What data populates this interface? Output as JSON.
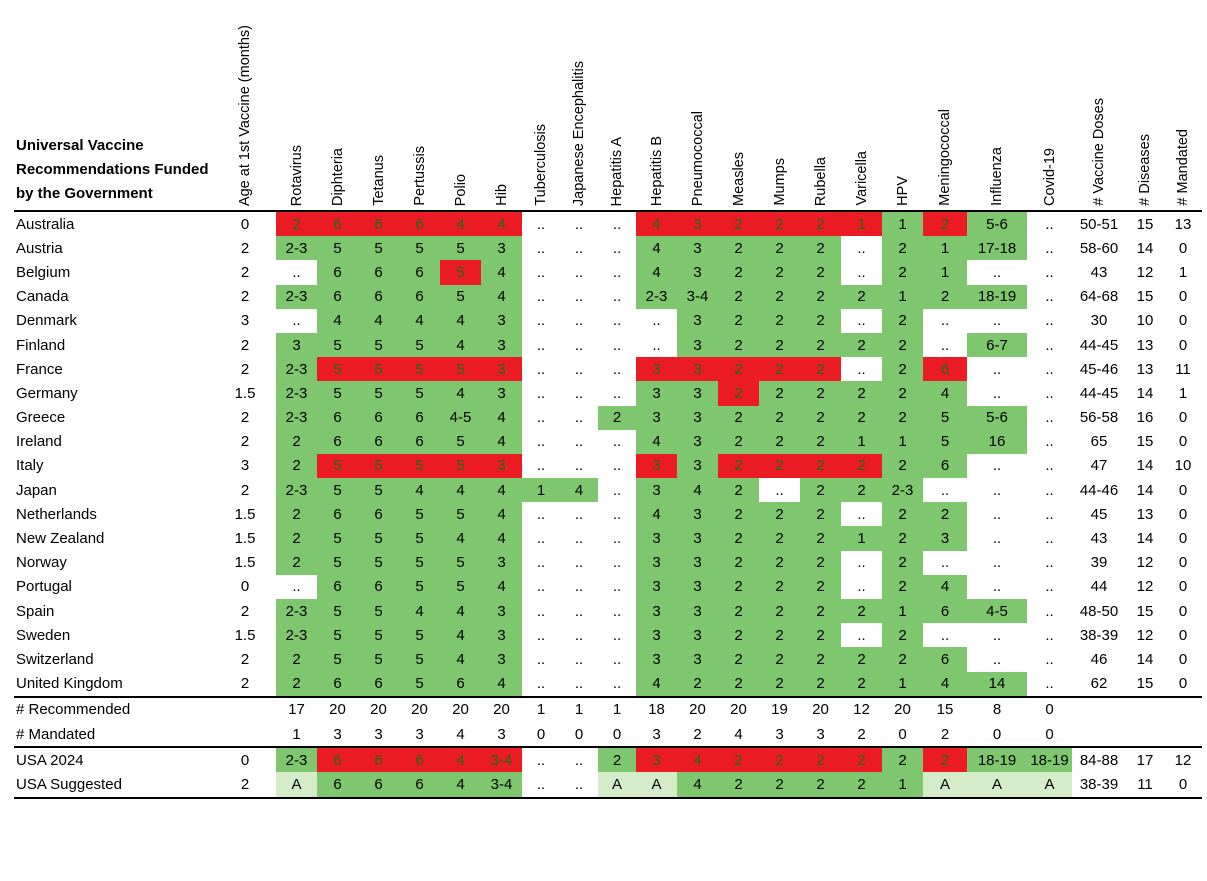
{
  "title": "Universal Vaccine Recommendations Funded by the Government",
  "columns": [
    "Age at 1st Vaccine (months)",
    "Rotavirus",
    "Diphteria",
    "Tetanus",
    "Pertussis",
    "Polio",
    "Hib",
    "Tuberculosis",
    "Japanese Encephalitis",
    "Hepatitis A",
    "Hepatitis B",
    "Pneumococcal",
    "Measles",
    "Mumps",
    "Rubella",
    "Varicella",
    "HPV",
    "Meningococcal",
    "Influenza",
    "Covid-19",
    "# Vaccine Doses",
    "# Diseases",
    "# Mandated"
  ],
  "rows": [
    {
      "name": "Australia",
      "cells": [
        "0",
        "2",
        "6",
        "6",
        "6",
        "4",
        "4",
        "..",
        "..",
        "..",
        "4",
        "3",
        "2",
        "2",
        "2",
        "1",
        "1",
        "2",
        "5-6",
        "..",
        "50-51",
        "15",
        "13"
      ],
      "colors": [
        "",
        "r",
        "r",
        "r",
        "r",
        "r",
        "r",
        "",
        "",
        "",
        "r",
        "r",
        "r",
        "r",
        "r",
        "r",
        "g",
        "r",
        "g",
        "",
        "",
        "",
        ""
      ]
    },
    {
      "name": "Austria",
      "cells": [
        "2",
        "2-3",
        "5",
        "5",
        "5",
        "5",
        "3",
        "..",
        "..",
        "..",
        "4",
        "3",
        "2",
        "2",
        "2",
        "..",
        "2",
        "1",
        "17-18",
        "..",
        "58-60",
        "14",
        "0"
      ],
      "colors": [
        "",
        "g",
        "g",
        "g",
        "g",
        "g",
        "g",
        "",
        "",
        "",
        "g",
        "g",
        "g",
        "g",
        "g",
        "",
        "g",
        "g",
        "g",
        "",
        "",
        "",
        ""
      ]
    },
    {
      "name": "Belgium",
      "cells": [
        "2",
        "..",
        "6",
        "6",
        "6",
        "5",
        "4",
        "..",
        "..",
        "..",
        "4",
        "3",
        "2",
        "2",
        "2",
        "..",
        "2",
        "1",
        "..",
        "..",
        "43",
        "12",
        "1"
      ],
      "colors": [
        "",
        "",
        "g",
        "g",
        "g",
        "r",
        "g",
        "",
        "",
        "",
        "g",
        "g",
        "g",
        "g",
        "g",
        "",
        "g",
        "g",
        "",
        "",
        "",
        "",
        ""
      ]
    },
    {
      "name": "Canada",
      "cells": [
        "2",
        "2-3",
        "6",
        "6",
        "6",
        "5",
        "4",
        "..",
        "..",
        "..",
        "2-3",
        "3-4",
        "2",
        "2",
        "2",
        "2",
        "1",
        "2",
        "18-19",
        "..",
        "64-68",
        "15",
        "0"
      ],
      "colors": [
        "",
        "g",
        "g",
        "g",
        "g",
        "g",
        "g",
        "",
        "",
        "",
        "g",
        "g",
        "g",
        "g",
        "g",
        "g",
        "g",
        "g",
        "g",
        "",
        "",
        "",
        ""
      ]
    },
    {
      "name": "Denmark",
      "cells": [
        "3",
        "..",
        "4",
        "4",
        "4",
        "4",
        "3",
        "..",
        "..",
        "..",
        "..",
        "3",
        "2",
        "2",
        "2",
        "..",
        "2",
        "..",
        "..",
        "..",
        "30",
        "10",
        "0"
      ],
      "colors": [
        "",
        "",
        "g",
        "g",
        "g",
        "g",
        "g",
        "",
        "",
        "",
        "",
        "g",
        "g",
        "g",
        "g",
        "",
        "g",
        "",
        "",
        "",
        "",
        "",
        ""
      ]
    },
    {
      "name": "Finland",
      "cells": [
        "2",
        "3",
        "5",
        "5",
        "5",
        "4",
        "3",
        "..",
        "..",
        "..",
        "..",
        "3",
        "2",
        "2",
        "2",
        "2",
        "2",
        "..",
        "6-7",
        "..",
        "44-45",
        "13",
        "0"
      ],
      "colors": [
        "",
        "g",
        "g",
        "g",
        "g",
        "g",
        "g",
        "",
        "",
        "",
        "",
        "g",
        "g",
        "g",
        "g",
        "g",
        "g",
        "",
        "g",
        "",
        "",
        "",
        ""
      ]
    },
    {
      "name": "France",
      "cells": [
        "2",
        "2-3",
        "5",
        "5",
        "5",
        "5",
        "3",
        "..",
        "..",
        "..",
        "3",
        "3",
        "2",
        "2",
        "2",
        "..",
        "2",
        "6",
        "..",
        "..",
        "45-46",
        "13",
        "11"
      ],
      "colors": [
        "",
        "g",
        "r",
        "r",
        "r",
        "r",
        "r",
        "",
        "",
        "",
        "r",
        "r",
        "r",
        "r",
        "r",
        "",
        "g",
        "r",
        "",
        "",
        "",
        "",
        ""
      ]
    },
    {
      "name": "Germany",
      "cells": [
        "1.5",
        "2-3",
        "5",
        "5",
        "5",
        "4",
        "3",
        "..",
        "..",
        "..",
        "3",
        "3",
        "2",
        "2",
        "2",
        "2",
        "2",
        "4",
        "..",
        "..",
        "44-45",
        "14",
        "1"
      ],
      "colors": [
        "",
        "g",
        "g",
        "g",
        "g",
        "g",
        "g",
        "",
        "",
        "",
        "g",
        "g",
        "r",
        "g",
        "g",
        "g",
        "g",
        "g",
        "",
        "",
        "",
        "",
        ""
      ]
    },
    {
      "name": "Greece",
      "cells": [
        "2",
        "2-3",
        "6",
        "6",
        "6",
        "4-5",
        "4",
        "..",
        "..",
        "2",
        "3",
        "3",
        "2",
        "2",
        "2",
        "2",
        "2",
        "5",
        "5-6",
        "..",
        "56-58",
        "16",
        "0"
      ],
      "colors": [
        "",
        "g",
        "g",
        "g",
        "g",
        "g",
        "g",
        "",
        "",
        "g",
        "g",
        "g",
        "g",
        "g",
        "g",
        "g",
        "g",
        "g",
        "g",
        "",
        "",
        "",
        ""
      ]
    },
    {
      "name": "Ireland",
      "cells": [
        "2",
        "2",
        "6",
        "6",
        "6",
        "5",
        "4",
        "..",
        "..",
        "..",
        "4",
        "3",
        "2",
        "2",
        "2",
        "1",
        "1",
        "5",
        "16",
        "..",
        "65",
        "15",
        "0"
      ],
      "colors": [
        "",
        "g",
        "g",
        "g",
        "g",
        "g",
        "g",
        "",
        "",
        "",
        "g",
        "g",
        "g",
        "g",
        "g",
        "g",
        "g",
        "g",
        "g",
        "",
        "",
        "",
        ""
      ]
    },
    {
      "name": "Italy",
      "cells": [
        "3",
        "2",
        "5",
        "5",
        "5",
        "5",
        "3",
        "..",
        "..",
        "..",
        "3",
        "3",
        "2",
        "2",
        "2",
        "2",
        "2",
        "6",
        "..",
        "..",
        "47",
        "14",
        "10"
      ],
      "colors": [
        "",
        "g",
        "r",
        "r",
        "r",
        "r",
        "r",
        "",
        "",
        "",
        "r",
        "g",
        "r",
        "r",
        "r",
        "r",
        "g",
        "g",
        "",
        "",
        "",
        "",
        ""
      ]
    },
    {
      "name": "Japan",
      "cells": [
        "2",
        "2-3",
        "5",
        "5",
        "4",
        "4",
        "4",
        "1",
        "4",
        "..",
        "3",
        "4",
        "2",
        "..",
        "2",
        "2",
        "2-3",
        "..",
        "..",
        "..",
        "44-46",
        "14",
        "0"
      ],
      "colors": [
        "",
        "g",
        "g",
        "g",
        "g",
        "g",
        "g",
        "g",
        "g",
        "",
        "g",
        "g",
        "g",
        "",
        "g",
        "g",
        "g",
        "",
        "",
        "",
        "",
        "",
        ""
      ]
    },
    {
      "name": "Netherlands",
      "cells": [
        "1.5",
        "2",
        "6",
        "6",
        "5",
        "5",
        "4",
        "..",
        "..",
        "..",
        "4",
        "3",
        "2",
        "2",
        "2",
        "..",
        "2",
        "2",
        "..",
        "..",
        "45",
        "13",
        "0"
      ],
      "colors": [
        "",
        "g",
        "g",
        "g",
        "g",
        "g",
        "g",
        "",
        "",
        "",
        "g",
        "g",
        "g",
        "g",
        "g",
        "",
        "g",
        "g",
        "",
        "",
        "",
        "",
        ""
      ]
    },
    {
      "name": "New Zealand",
      "cells": [
        "1.5",
        "2",
        "5",
        "5",
        "5",
        "4",
        "4",
        "..",
        "..",
        "..",
        "3",
        "3",
        "2",
        "2",
        "2",
        "1",
        "2",
        "3",
        "..",
        "..",
        "43",
        "14",
        "0"
      ],
      "colors": [
        "",
        "g",
        "g",
        "g",
        "g",
        "g",
        "g",
        "",
        "",
        "",
        "g",
        "g",
        "g",
        "g",
        "g",
        "g",
        "g",
        "g",
        "",
        "",
        "",
        "",
        ""
      ]
    },
    {
      "name": "Norway",
      "cells": [
        "1.5",
        "2",
        "5",
        "5",
        "5",
        "5",
        "3",
        "..",
        "..",
        "..",
        "3",
        "3",
        "2",
        "2",
        "2",
        "..",
        "2",
        "..",
        "..",
        "..",
        "39",
        "12",
        "0"
      ],
      "colors": [
        "",
        "g",
        "g",
        "g",
        "g",
        "g",
        "g",
        "",
        "",
        "",
        "g",
        "g",
        "g",
        "g",
        "g",
        "",
        "g",
        "",
        "",
        "",
        "",
        "",
        ""
      ]
    },
    {
      "name": "Portugal",
      "cells": [
        "0",
        "..",
        "6",
        "6",
        "5",
        "5",
        "4",
        "..",
        "..",
        "..",
        "3",
        "3",
        "2",
        "2",
        "2",
        "..",
        "2",
        "4",
        "..",
        "..",
        "44",
        "12",
        "0"
      ],
      "colors": [
        "",
        "",
        "g",
        "g",
        "g",
        "g",
        "g",
        "",
        "",
        "",
        "g",
        "g",
        "g",
        "g",
        "g",
        "",
        "g",
        "g",
        "",
        "",
        "",
        "",
        ""
      ]
    },
    {
      "name": "Spain",
      "cells": [
        "2",
        "2-3",
        "5",
        "5",
        "4",
        "4",
        "3",
        "..",
        "..",
        "..",
        "3",
        "3",
        "2",
        "2",
        "2",
        "2",
        "1",
        "6",
        "4-5",
        "..",
        "48-50",
        "15",
        "0"
      ],
      "colors": [
        "",
        "g",
        "g",
        "g",
        "g",
        "g",
        "g",
        "",
        "",
        "",
        "g",
        "g",
        "g",
        "g",
        "g",
        "g",
        "g",
        "g",
        "g",
        "",
        "",
        "",
        ""
      ]
    },
    {
      "name": "Sweden",
      "cells": [
        "1.5",
        "2-3",
        "5",
        "5",
        "5",
        "4",
        "3",
        "..",
        "..",
        "..",
        "3",
        "3",
        "2",
        "2",
        "2",
        "..",
        "2",
        "..",
        "..",
        "..",
        "38-39",
        "12",
        "0"
      ],
      "colors": [
        "",
        "g",
        "g",
        "g",
        "g",
        "g",
        "g",
        "",
        "",
        "",
        "g",
        "g",
        "g",
        "g",
        "g",
        "",
        "g",
        "",
        "",
        "",
        "",
        "",
        ""
      ]
    },
    {
      "name": "Switzerland",
      "cells": [
        "2",
        "2",
        "5",
        "5",
        "5",
        "4",
        "3",
        "..",
        "..",
        "..",
        "3",
        "3",
        "2",
        "2",
        "2",
        "2",
        "2",
        "6",
        "..",
        "..",
        "46",
        "14",
        "0"
      ],
      "colors": [
        "",
        "g",
        "g",
        "g",
        "g",
        "g",
        "g",
        "",
        "",
        "",
        "g",
        "g",
        "g",
        "g",
        "g",
        "g",
        "g",
        "g",
        "",
        "",
        "",
        "",
        ""
      ]
    },
    {
      "name": "United Kingdom",
      "cells": [
        "2",
        "2",
        "6",
        "6",
        "5",
        "6",
        "4",
        "..",
        "..",
        "..",
        "4",
        "2",
        "2",
        "2",
        "2",
        "2",
        "1",
        "4",
        "14",
        "..",
        "62",
        "15",
        "0"
      ],
      "colors": [
        "",
        "g",
        "g",
        "g",
        "g",
        "g",
        "g",
        "",
        "",
        "",
        "g",
        "g",
        "g",
        "g",
        "g",
        "g",
        "g",
        "g",
        "g",
        "",
        "",
        "",
        ""
      ]
    }
  ],
  "summary": [
    {
      "name": "# Recommended",
      "cells": [
        "",
        "17",
        "20",
        "20",
        "20",
        "20",
        "20",
        "1",
        "1",
        "1",
        "18",
        "20",
        "20",
        "19",
        "20",
        "12",
        "20",
        "15",
        "8",
        "0",
        "",
        "",
        ""
      ],
      "colors": [
        "",
        "",
        "",
        "",
        "",
        "",
        "",
        "",
        "",
        "",
        "",
        "",
        "",
        "",
        "",
        "",
        "",
        "",
        "",
        "",
        "",
        "",
        ""
      ]
    },
    {
      "name": "# Mandated",
      "cells": [
        "",
        "1",
        "3",
        "3",
        "3",
        "4",
        "3",
        "0",
        "0",
        "0",
        "3",
        "2",
        "4",
        "3",
        "3",
        "2",
        "0",
        "2",
        "0",
        "0",
        "",
        "",
        ""
      ],
      "colors": [
        "",
        "",
        "",
        "",
        "",
        "",
        "",
        "",
        "",
        "",
        "",
        "",
        "",
        "",
        "",
        "",
        "",
        "",
        "",
        "",
        "",
        "",
        ""
      ]
    }
  ],
  "usa": [
    {
      "name": "USA 2024",
      "cells": [
        "0",
        "2-3",
        "6",
        "6",
        "6",
        "4",
        "3-4",
        "..",
        "..",
        "2",
        "3",
        "4",
        "2",
        "2",
        "2",
        "2",
        "2",
        "2",
        "18-19",
        "18-19",
        "84-88",
        "17",
        "12"
      ],
      "colors": [
        "",
        "g",
        "r",
        "r",
        "r",
        "r",
        "r",
        "",
        "",
        "g",
        "r",
        "r",
        "r",
        "r",
        "r",
        "r",
        "g",
        "r",
        "g",
        "g",
        "",
        "",
        ""
      ]
    },
    {
      "name": "USA Suggested",
      "cells": [
        "2",
        "A",
        "6",
        "6",
        "6",
        "4",
        "3-4",
        "..",
        "..",
        "A",
        "A",
        "4",
        "2",
        "2",
        "2",
        "2",
        "1",
        "A",
        "A",
        "A",
        "38-39",
        "11",
        "0"
      ],
      "colors": [
        "",
        "l",
        "g",
        "g",
        "g",
        "g",
        "g",
        "",
        "",
        "l",
        "l",
        "g",
        "g",
        "g",
        "g",
        "g",
        "g",
        "l",
        "l",
        "l",
        "",
        "",
        ""
      ]
    }
  ]
}
